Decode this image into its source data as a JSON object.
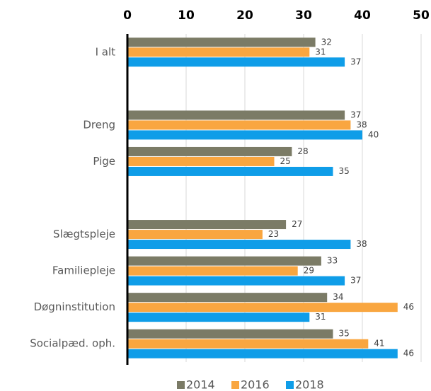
{
  "chart_data": {
    "type": "bar",
    "orientation": "horizontal",
    "categories": [
      "I alt",
      null,
      "Dreng",
      "Pige",
      null,
      "Slægtspleje",
      "Familiepleje",
      "Døgninstitution",
      "Socialpæd. oph."
    ],
    "series": [
      {
        "name": "2014",
        "color": "#7b7b66",
        "values": [
          32,
          null,
          37,
          28,
          null,
          27,
          33,
          34,
          35
        ]
      },
      {
        "name": "2016",
        "color": "#f9a640",
        "values": [
          31,
          null,
          38,
          25,
          null,
          23,
          29,
          46,
          41
        ]
      },
      {
        "name": "2018",
        "color": "#0f9de8",
        "values": [
          37,
          null,
          40,
          35,
          null,
          38,
          37,
          31,
          46
        ]
      }
    ],
    "xlim": [
      0,
      50
    ],
    "xticks": [
      0,
      10,
      20,
      30,
      40,
      50
    ],
    "grid": true,
    "legend": "bottom"
  }
}
